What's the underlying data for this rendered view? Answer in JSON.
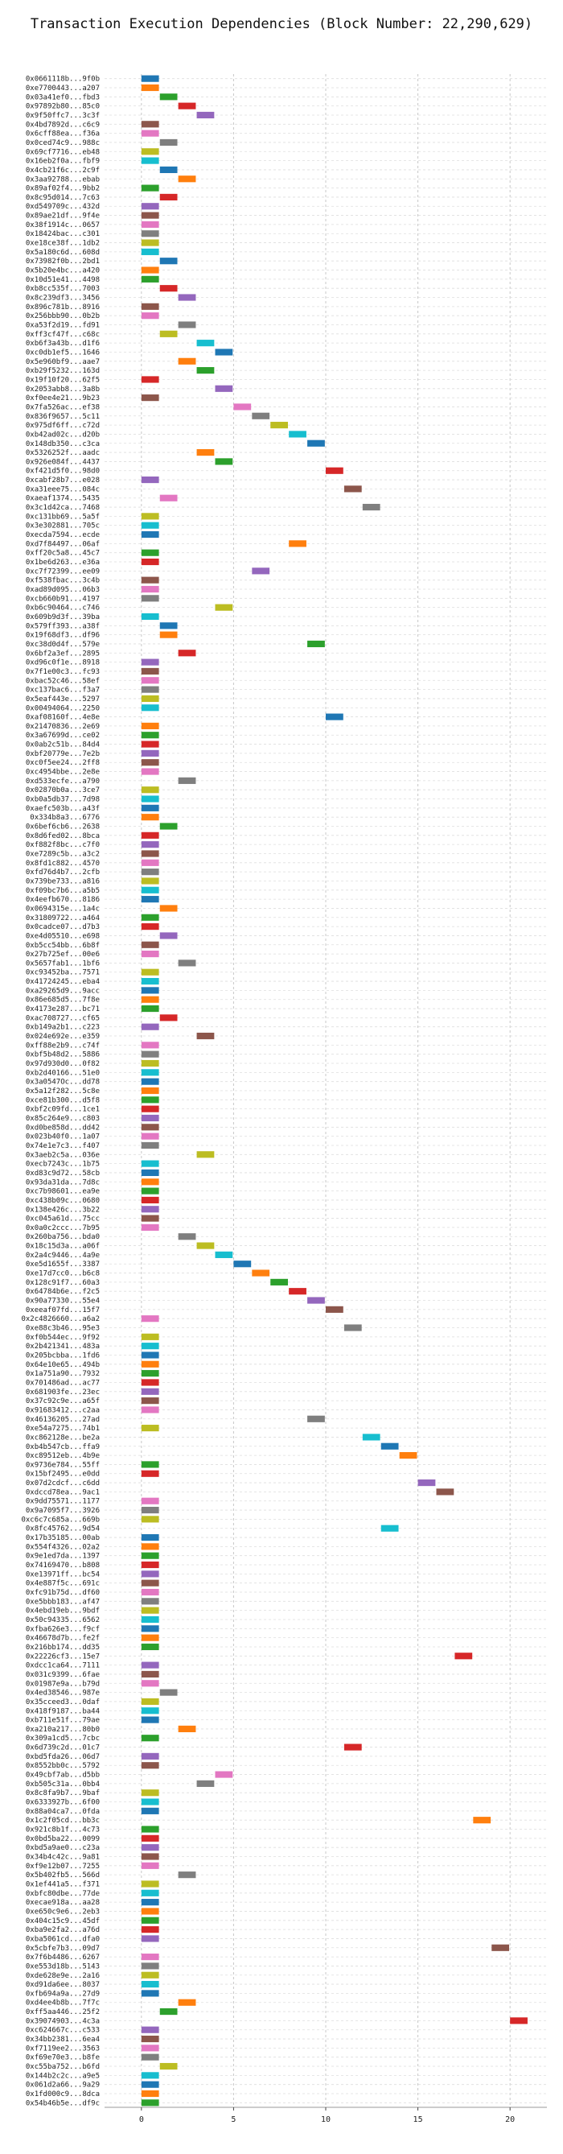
{
  "chart_data": {
    "type": "bar",
    "orientation": "horizontal-gantt",
    "title": "Transaction Execution Dependencies (Block Number: 22,290,629)",
    "xlabel": "",
    "ylabel": "",
    "xlim": [
      -2,
      22
    ],
    "xticks": [
      0,
      5,
      10,
      15,
      20
    ],
    "grid": true,
    "palette": [
      "#1f77b4",
      "#ff7f0e",
      "#2ca02c",
      "#d62728",
      "#9467bd",
      "#8c564b",
      "#e377c2",
      "#7f7f7f",
      "#bcbd22",
      "#17becf"
    ],
    "transactions": [
      {
        "label": "0x0661118b...9f0b",
        "start": 0
      },
      {
        "label": "0xe7700443...a207",
        "start": 0
      },
      {
        "label": "0x03a41ef0...fbd3",
        "start": 1
      },
      {
        "label": "0x97892b80...85c0",
        "start": 2
      },
      {
        "label": "0x9f50ffc7...3c3f",
        "start": 3
      },
      {
        "label": "0x4bd7892d...c6c9",
        "start": 0
      },
      {
        "label": "0x6cff88ea...f36a",
        "start": 0
      },
      {
        "label": "0x0ced74c9...988c",
        "start": 1
      },
      {
        "label": "0x69cf7716...eb48",
        "start": 0
      },
      {
        "label": "0x16eb2f0a...fbf9",
        "start": 0
      },
      {
        "label": "0x4cb21f6c...2c9f",
        "start": 1
      },
      {
        "label": "0x3aa92788...ebab",
        "start": 2
      },
      {
        "label": "0x89af02f4...9bb2",
        "start": 0
      },
      {
        "label": "0x8c95d014...7c63",
        "start": 1
      },
      {
        "label": "0xd549709c...432d",
        "start": 0
      },
      {
        "label": "0x89ae21df...9f4e",
        "start": 0
      },
      {
        "label": "0x38f1914c...0657",
        "start": 0
      },
      {
        "label": "0x18424bac...c301",
        "start": 0
      },
      {
        "label": "0xe18ce38f...1db2",
        "start": 0
      },
      {
        "label": "0x5a180c6d...608d",
        "start": 0
      },
      {
        "label": "0x73982f0b...2bd1",
        "start": 1
      },
      {
        "label": "0x5b20e4bc...a420",
        "start": 0
      },
      {
        "label": "0x10d51e41...4498",
        "start": 0
      },
      {
        "label": "0xb8cc535f...7003",
        "start": 1
      },
      {
        "label": "0x8c239df3...3456",
        "start": 2
      },
      {
        "label": "0x896c781b...8916",
        "start": 0
      },
      {
        "label": "0x256bbb90...0b2b",
        "start": 0
      },
      {
        "label": "0xa53f2d19...fd91",
        "start": 2
      },
      {
        "label": "0xff3cf47f...c68c",
        "start": 1
      },
      {
        "label": "0xb6f3a43b...d1f6",
        "start": 3
      },
      {
        "label": "0xc0db1ef5...1646",
        "start": 4
      },
      {
        "label": "0x5e960bf9...aae7",
        "start": 2
      },
      {
        "label": "0xb29f5232...163d",
        "start": 3
      },
      {
        "label": "0x19f10f20...62f5",
        "start": 0
      },
      {
        "label": "0x2053abb8...3a8b",
        "start": 4
      },
      {
        "label": "0xf0ee4e21...9b23",
        "start": 0
      },
      {
        "label": "0x7fa526ac...ef38",
        "start": 5
      },
      {
        "label": "0x836f9657...5c11",
        "start": 6
      },
      {
        "label": "0x975df6ff...c72d",
        "start": 7
      },
      {
        "label": "0xb42ad02c...d20b",
        "start": 8
      },
      {
        "label": "0x148db350...c3ca",
        "start": 9
      },
      {
        "label": "0x5326252f...aadc",
        "start": 3
      },
      {
        "label": "0x926e084f...4437",
        "start": 4
      },
      {
        "label": "0xf421d5f0...98d0",
        "start": 10
      },
      {
        "label": "0xcabf28b7...e028",
        "start": 0
      },
      {
        "label": "0xa31eee75...084c",
        "start": 11
      },
      {
        "label": "0xaeaf1374...5435",
        "start": 1
      },
      {
        "label": "0x3c1d42ca...7468",
        "start": 12
      },
      {
        "label": "0xc131bb69...5a5f",
        "start": 0
      },
      {
        "label": "0x3e302881...705c",
        "start": 0
      },
      {
        "label": "0xecda7594...ecde",
        "start": 0
      },
      {
        "label": "0xd7f84497...06af",
        "start": 8
      },
      {
        "label": "0xff20c5a8...45c7",
        "start": 0
      },
      {
        "label": "0x1be6d263...e36a",
        "start": 0
      },
      {
        "label": "0xc7f72399...ee09",
        "start": 6
      },
      {
        "label": "0xf538fbac...3c4b",
        "start": 0
      },
      {
        "label": "0xad89d095...06b3",
        "start": 0
      },
      {
        "label": "0xcb660b91...4197",
        "start": 0
      },
      {
        "label": "0xb6c90464...c746",
        "start": 4
      },
      {
        "label": "0x609b9d3f...39ba",
        "start": 0
      },
      {
        "label": "0x579ff393...a38f",
        "start": 1
      },
      {
        "label": "0x19f68df3...df96",
        "start": 1
      },
      {
        "label": "0xc38d0d4f...579e",
        "start": 9
      },
      {
        "label": "0x6bf2a3ef...2895",
        "start": 2
      },
      {
        "label": "0xd96c0f1e...8918",
        "start": 0
      },
      {
        "label": "0x7f1e00c3...fc93",
        "start": 0
      },
      {
        "label": "0xbac52c46...58ef",
        "start": 0
      },
      {
        "label": "0xc137bac6...f3a7",
        "start": 0
      },
      {
        "label": "0x5eaf443e...5297",
        "start": 0
      },
      {
        "label": "0x00494064...2250",
        "start": 0
      },
      {
        "label": "0xaf08160f...4e8e",
        "start": 10
      },
      {
        "label": "0x21470836...2e69",
        "start": 0
      },
      {
        "label": "0x3a67699d...ce02",
        "start": 0
      },
      {
        "label": "0x0ab2c51b...84d4",
        "start": 0
      },
      {
        "label": "0xbf20779e...7e2b",
        "start": 0
      },
      {
        "label": "0xc0f5ee24...2ff8",
        "start": 0
      },
      {
        "label": "0xc4954bbe...2e8e",
        "start": 0
      },
      {
        "label": "0xd533ecfe...a790",
        "start": 2
      },
      {
        "label": "0x02870b0a...3ce7",
        "start": 0
      },
      {
        "label": "0xb0a5db37...7d98",
        "start": 0
      },
      {
        "label": "0xaefc503b...a43f",
        "start": 0
      },
      {
        "label": "0x334b8a3...6776",
        "start": 0
      },
      {
        "label": "0x6bef6cb6...2638",
        "start": 1
      },
      {
        "label": "0x8d6fed02...8bca",
        "start": 0
      },
      {
        "label": "0xf882f8bc...c7f0",
        "start": 0
      },
      {
        "label": "0xe7289c5b...a3c2",
        "start": 0
      },
      {
        "label": "0x8fd1c882...4570",
        "start": 0
      },
      {
        "label": "0xfd76d4b7...2cfb",
        "start": 0
      },
      {
        "label": "0x739be733...a816",
        "start": 0
      },
      {
        "label": "0xf09bc7b6...a5b5",
        "start": 0
      },
      {
        "label": "0x4eefb670...8186",
        "start": 0
      },
      {
        "label": "0x0694315e...1a4c",
        "start": 1
      },
      {
        "label": "0x31809722...a464",
        "start": 0
      },
      {
        "label": "0x0cadce07...d7b3",
        "start": 0
      },
      {
        "label": "0xe4d05510...e698",
        "start": 1
      },
      {
        "label": "0xb5cc54bb...6b8f",
        "start": 0
      },
      {
        "label": "0x27b725ef...00e6",
        "start": 0
      },
      {
        "label": "0x5657fab1...1bf6",
        "start": 2
      },
      {
        "label": "0xc93452ba...7571",
        "start": 0
      },
      {
        "label": "0x41724245...eba4",
        "start": 0
      },
      {
        "label": "0xa29265d9...9acc",
        "start": 0
      },
      {
        "label": "0x86e685d5...7f8e",
        "start": 0
      },
      {
        "label": "0x4173e287...bc71",
        "start": 0
      },
      {
        "label": "0xac708727...cf65",
        "start": 1
      },
      {
        "label": "0xb149a2b1...c223",
        "start": 0
      },
      {
        "label": "0x024e692e...e359",
        "start": 3
      },
      {
        "label": "0xff88e2b9...c74f",
        "start": 0
      },
      {
        "label": "0xbf5b48d2...5886",
        "start": 0
      },
      {
        "label": "0x97d930d0...0f82",
        "start": 0
      },
      {
        "label": "0xb2d40166...51e0",
        "start": 0
      },
      {
        "label": "0x3a0547Oc...dd78",
        "start": 0
      },
      {
        "label": "0x5a12f282...5c8e",
        "start": 0
      },
      {
        "label": "0xce81b300...d5f8",
        "start": 0
      },
      {
        "label": "0xbf2c09fd...1ce1",
        "start": 0
      },
      {
        "label": "0x85c264e9...c803",
        "start": 0
      },
      {
        "label": "0xd0be858d...dd42",
        "start": 0
      },
      {
        "label": "0x023b40f0...1a07",
        "start": 0
      },
      {
        "label": "0x74e1e7c3...f407",
        "start": 0
      },
      {
        "label": "0x3aeb2c5a...036e",
        "start": 3
      },
      {
        "label": "0xecb7243c...1b75",
        "start": 0
      },
      {
        "label": "0xd83c9d72...58cb",
        "start": 0
      },
      {
        "label": "0x93da31da...7d8c",
        "start": 0
      },
      {
        "label": "0xc7b98601...ea9e",
        "start": 0
      },
      {
        "label": "0xc438b09c...0680",
        "start": 0
      },
      {
        "label": "0x138e426c...3b22",
        "start": 0
      },
      {
        "label": "0xc045a61d...75cc",
        "start": 0
      },
      {
        "label": "0x0a0c2ccc...7b95",
        "start": 0
      },
      {
        "label": "0x260ba756...bda0",
        "start": 2
      },
      {
        "label": "0x18c15d3a...a06f",
        "start": 3
      },
      {
        "label": "0x2a4c9446...4a9e",
        "start": 4
      },
      {
        "label": "0xe5d1655f...3387",
        "start": 5
      },
      {
        "label": "0xe17d7cc0...b6c8",
        "start": 6
      },
      {
        "label": "0x128c91f7...60a3",
        "start": 7
      },
      {
        "label": "0x64784b6e...f2c5",
        "start": 8
      },
      {
        "label": "0x90a77330...55e4",
        "start": 9
      },
      {
        "label": "0xeeaf07fd...15f7",
        "start": 10
      },
      {
        "label": "0x2c4826660...a6a2",
        "start": 0
      },
      {
        "label": "0xe88c3b46...95e3",
        "start": 11
      },
      {
        "label": "0xf0b544ec...9f92",
        "start": 0
      },
      {
        "label": "0x2b421341...483a",
        "start": 0
      },
      {
        "label": "0x205bcbba...1fd6",
        "start": 0
      },
      {
        "label": "0x64e10e65...494b",
        "start": 0
      },
      {
        "label": "0x1a751a90...7932",
        "start": 0
      },
      {
        "label": "0x701486ad...ac77",
        "start": 0
      },
      {
        "label": "0x681903fe...23ec",
        "start": 0
      },
      {
        "label": "0x37c92c9e...a65f",
        "start": 0
      },
      {
        "label": "0x91683412...c2aa",
        "start": 0
      },
      {
        "label": "0x46136205...27ad",
        "start": 9
      },
      {
        "label": "0xe54a7275...74b1",
        "start": 0
      },
      {
        "label": "0xc862128e...be2a",
        "start": 12
      },
      {
        "label": "0xb4b547cb...ffa9",
        "start": 13
      },
      {
        "label": "0xc89512eb...4b9e",
        "start": 14
      },
      {
        "label": "0x9736e784...55ff",
        "start": 0
      },
      {
        "label": "0x15bf2495...e0dd",
        "start": 0
      },
      {
        "label": "0x07d2cdcf...c6dd",
        "start": 15
      },
      {
        "label": "0xdccd78ea...9ac1",
        "start": 16
      },
      {
        "label": "0x9dd75571...1177",
        "start": 0
      },
      {
        "label": "0x9a7095f7...3926",
        "start": 0
      },
      {
        "label": "0xc6c7c685a...669b",
        "start": 0
      },
      {
        "label": "0x8fc45762...9d54",
        "start": 13
      },
      {
        "label": "0x17b35185...00ab",
        "start": 0
      },
      {
        "label": "0x554f4326...02a2",
        "start": 0
      },
      {
        "label": "0x9e1ed7da...1397",
        "start": 0
      },
      {
        "label": "0x74169470...b808",
        "start": 0
      },
      {
        "label": "0xe13971ff...bc54",
        "start": 0
      },
      {
        "label": "0x4e887f5c...691c",
        "start": 0
      },
      {
        "label": "0xfc91b75d...df60",
        "start": 0
      },
      {
        "label": "0xe5bbb183...af47",
        "start": 0
      },
      {
        "label": "0x4ebd19eb...9bdf",
        "start": 0
      },
      {
        "label": "0x50c94335...6562",
        "start": 0
      },
      {
        "label": "0xfba626e3...f9cf",
        "start": 0
      },
      {
        "label": "0x46678d7b...fe2f",
        "start": 0
      },
      {
        "label": "0x216bb174...dd35",
        "start": 0
      },
      {
        "label": "0x22226cf3...15e7",
        "start": 17
      },
      {
        "label": "0xdcc1ca64...7111",
        "start": 0
      },
      {
        "label": "0x031c9399...6fae",
        "start": 0
      },
      {
        "label": "0x01987e9a...b79d",
        "start": 0
      },
      {
        "label": "0x4ed38546...987e",
        "start": 1
      },
      {
        "label": "0x35cceed3...0daf",
        "start": 0
      },
      {
        "label": "0x418f9187...ba44",
        "start": 0
      },
      {
        "label": "0xb711e51f...79ae",
        "start": 0
      },
      {
        "label": "0xa210a217...80b0",
        "start": 2
      },
      {
        "label": "0x309a1cd5...7cbc",
        "start": 0
      },
      {
        "label": "0x6d739c2d...01c7",
        "start": 11
      },
      {
        "label": "0xbd5fda26...06d7",
        "start": 0
      },
      {
        "label": "0x8552bb0c...5792",
        "start": 0
      },
      {
        "label": "0x49cbf7ab...d5bb",
        "start": 4
      },
      {
        "label": "0xb505c31a...0bb4",
        "start": 3
      },
      {
        "label": "0x8c8fa9b7...9baf",
        "start": 0
      },
      {
        "label": "0x6333927b...6f00",
        "start": 0
      },
      {
        "label": "0x88a04ca7...0fda",
        "start": 0
      },
      {
        "label": "0x1c2f05cd...bb3c",
        "start": 18
      },
      {
        "label": "0x921c8b1f...4c73",
        "start": 0
      },
      {
        "label": "0x0bd5ba22...0099",
        "start": 0
      },
      {
        "label": "0xbd5a9ae0...c23a",
        "start": 0
      },
      {
        "label": "0x34b4c42c...9a81",
        "start": 0
      },
      {
        "label": "0xf9e12b07...7255",
        "start": 0
      },
      {
        "label": "0x5b402fb5...566d",
        "start": 2
      },
      {
        "label": "0x1ef441a5...f371",
        "start": 0
      },
      {
        "label": "0xbfc80dbe...77de",
        "start": 0
      },
      {
        "label": "0xecae918a...aa28",
        "start": 0
      },
      {
        "label": "0xe650c9e6...2eb3",
        "start": 0
      },
      {
        "label": "0x404c15c9...45df",
        "start": 0
      },
      {
        "label": "0xba9e2fa2...a76d",
        "start": 0
      },
      {
        "label": "0xba5061cd...dfa0",
        "start": 0
      },
      {
        "label": "0x5cbfe7b3...09d7",
        "start": 19
      },
      {
        "label": "0x7f6b4486...6267",
        "start": 0
      },
      {
        "label": "0xe553d18b...5143",
        "start": 0
      },
      {
        "label": "0xde628e9e...2a16",
        "start": 0
      },
      {
        "label": "0xd91da6ee...8037",
        "start": 0
      },
      {
        "label": "0xfb694a9a...27d9",
        "start": 0
      },
      {
        "label": "0xd4ee4b8b...7f7c",
        "start": 2
      },
      {
        "label": "0xff5aa446...25f2",
        "start": 1
      },
      {
        "label": "0x39074903...4c3a",
        "start": 20
      },
      {
        "label": "0xc624667c...c533",
        "start": 0
      },
      {
        "label": "0x34bb2381...6ea4",
        "start": 0
      },
      {
        "label": "0xf7119ee2...3563",
        "start": 0
      },
      {
        "label": "0xf69e70e3...b8fe",
        "start": 0
      },
      {
        "label": "0xc55ba752...b6fd",
        "start": 1
      },
      {
        "label": "0x144b2c2c...a9e5",
        "start": 0
      },
      {
        "label": "0x061d2a66...9a29",
        "start": 0
      },
      {
        "label": "0x1fd000c9...8dca",
        "start": 0
      },
      {
        "label": "0x54b46b5e...df9c",
        "start": 0
      }
    ]
  }
}
